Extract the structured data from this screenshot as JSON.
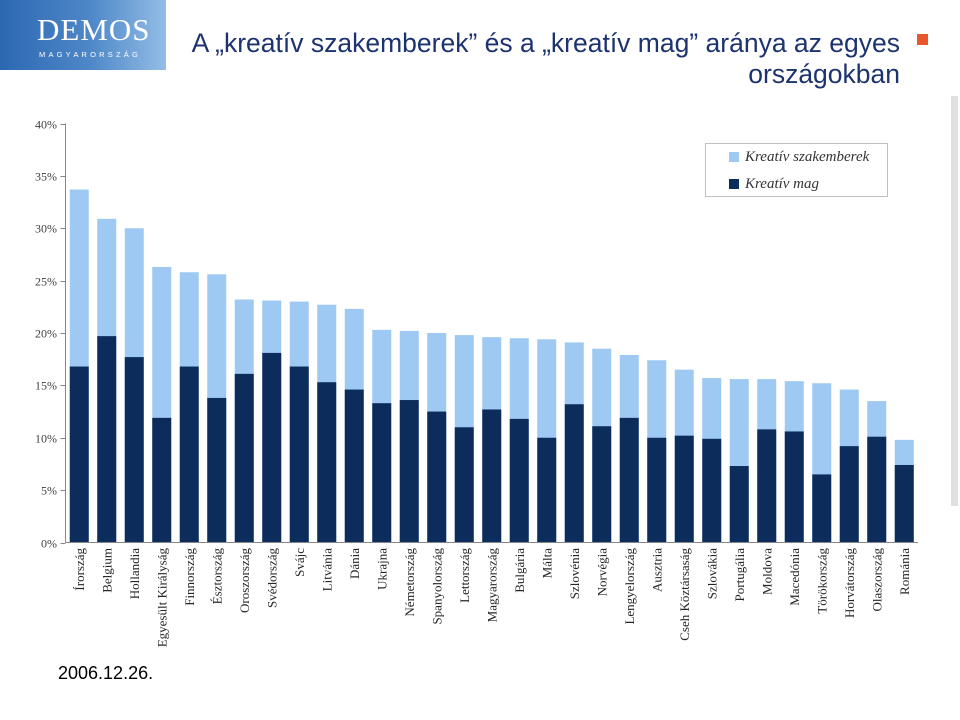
{
  "logo": {
    "name": "DEMOS",
    "subtitle": "MAGYARORSZÁG"
  },
  "title": "A „kreatív szakemberek” és a „kreatív mag” aránya az egyes országokban",
  "date": "2006.12.26.",
  "colors": {
    "title": "#1c3370",
    "accent_square": "#e8572b",
    "logo_blue": "#2c68b2",
    "axis": "#868686"
  },
  "chart_data": {
    "type": "bar",
    "barmode": "overlay",
    "categories": [
      "Írország",
      "Belgium",
      "Hollandia",
      "Egyesült Királyság",
      "Finnország",
      "Észtország",
      "Oroszország",
      "Svédország",
      "Svájc",
      "Litvánia",
      "Dánia",
      "Ukrajna",
      "Németország",
      "Spanyolország",
      "Lettország",
      "Magyarország",
      "Bulgária",
      "Málta",
      "Szlovénia",
      "Norvégia",
      "Lengyelország",
      "Ausztria",
      "Cseh Köztársaság",
      "Szlovákia",
      "Portugália",
      "Moldova",
      "Macedónia",
      "Törökország",
      "Horvátország",
      "Olaszország",
      "Románia"
    ],
    "series": [
      {
        "name": "Kreatív szakemberek",
        "color": "#9ec9f2",
        "values": [
          33.7,
          30.9,
          30.0,
          26.3,
          25.8,
          25.6,
          23.2,
          23.1,
          23.0,
          22.7,
          22.3,
          20.3,
          20.2,
          20.0,
          19.8,
          19.6,
          19.5,
          19.4,
          19.1,
          18.5,
          17.9,
          17.4,
          16.5,
          15.7,
          15.6,
          15.6,
          15.4,
          15.2,
          14.6,
          13.5,
          9.8
        ]
      },
      {
        "name": "Kreatív mag",
        "color": "#0c2d5c",
        "values": [
          16.8,
          19.7,
          17.7,
          11.9,
          16.8,
          13.8,
          16.1,
          18.1,
          16.8,
          15.3,
          14.6,
          13.3,
          13.6,
          12.5,
          11.0,
          12.7,
          11.8,
          10.0,
          13.2,
          11.1,
          11.9,
          10.0,
          10.2,
          9.9,
          7.3,
          10.8,
          10.6,
          6.5,
          9.2,
          10.1,
          7.4
        ]
      }
    ],
    "ylim": [
      0,
      40
    ],
    "yticks": [
      0,
      5,
      10,
      15,
      20,
      25,
      30,
      35,
      40
    ],
    "ytick_labels": [
      "0%",
      "5%",
      "10%",
      "15%",
      "20%",
      "25%",
      "30%",
      "35%",
      "40%"
    ],
    "legend": "top-right",
    "grid": false
  }
}
